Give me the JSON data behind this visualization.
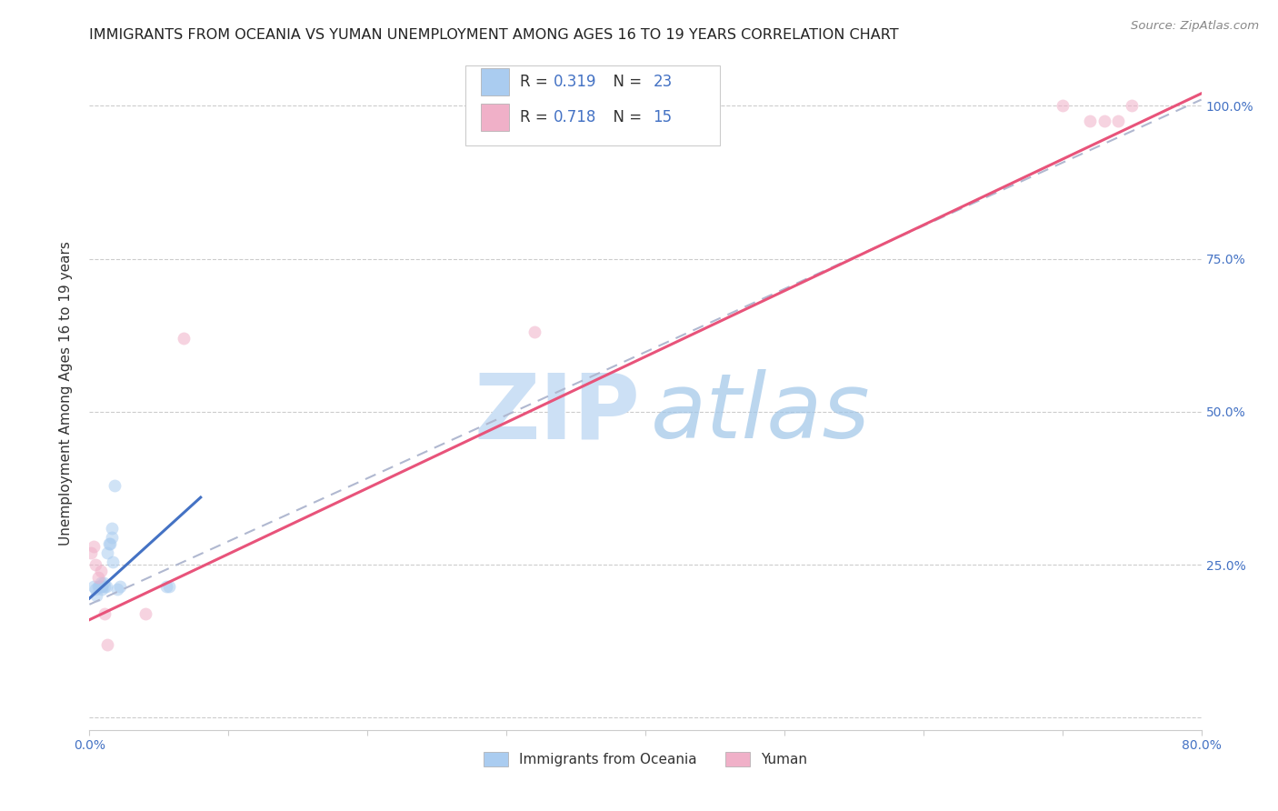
{
  "title": "IMMIGRANTS FROM OCEANIA VS YUMAN UNEMPLOYMENT AMONG AGES 16 TO 19 YEARS CORRELATION CHART",
  "source": "Source: ZipAtlas.com",
  "ylabel": "Unemployment Among Ages 16 to 19 years",
  "xlim": [
    0.0,
    0.8
  ],
  "ylim": [
    -0.02,
    1.08
  ],
  "legend_label1": "R = 0.319   N = 23",
  "legend_label2": "R = 0.718   N = 15",
  "legend_color1": "#aaccf0",
  "legend_color2": "#f0b0c8",
  "watermark_zip": "ZIP",
  "watermark_atlas": "atlas",
  "blue_scatter_x": [
    0.003,
    0.004,
    0.005,
    0.006,
    0.007,
    0.008,
    0.008,
    0.009,
    0.009,
    0.01,
    0.011,
    0.012,
    0.013,
    0.014,
    0.015,
    0.016,
    0.016,
    0.017,
    0.018,
    0.02,
    0.022,
    0.055,
    0.057
  ],
  "blue_scatter_y": [
    0.215,
    0.21,
    0.2,
    0.215,
    0.215,
    0.22,
    0.215,
    0.215,
    0.21,
    0.22,
    0.215,
    0.215,
    0.27,
    0.285,
    0.285,
    0.295,
    0.31,
    0.255,
    0.38,
    0.21,
    0.215,
    0.215,
    0.215
  ],
  "pink_scatter_x": [
    0.001,
    0.003,
    0.004,
    0.006,
    0.008,
    0.011,
    0.013,
    0.04,
    0.068,
    0.32,
    0.7,
    0.72,
    0.73,
    0.74,
    0.75
  ],
  "pink_scatter_y": [
    0.27,
    0.28,
    0.25,
    0.23,
    0.24,
    0.17,
    0.12,
    0.17,
    0.62,
    0.63,
    1.0,
    0.975,
    0.975,
    0.975,
    1.0
  ],
  "blue_line_x": [
    0.0,
    0.08
  ],
  "blue_line_y": [
    0.195,
    0.36
  ],
  "pink_line_x": [
    0.0,
    0.8
  ],
  "pink_line_y": [
    0.16,
    1.02
  ],
  "dashed_line_x": [
    0.0,
    0.8
  ],
  "dashed_line_y": [
    0.185,
    1.01
  ],
  "scatter_size": 100,
  "scatter_alpha": 0.55,
  "title_fontsize": 11.5,
  "axis_label_fontsize": 11,
  "tick_fontsize": 10,
  "source_fontsize": 9.5,
  "line_color_blue": "#4472c4",
  "line_color_pink": "#e8537a",
  "line_color_dashed": "#b0b8d0",
  "scatter_color_blue": "#aaccf0",
  "scatter_color_pink": "#f0b0c8",
  "title_color": "#222222",
  "right_axis_color": "#4472c4",
  "text_color": "#333333"
}
